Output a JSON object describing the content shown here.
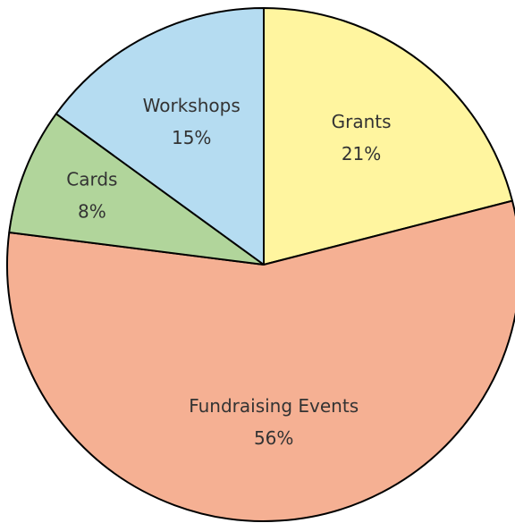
{
  "chart_data": {
    "type": "pie",
    "categories": [
      "Grants",
      "Fundraising Events",
      "Cards",
      "Workshops"
    ],
    "values": [
      21,
      56,
      8,
      15
    ],
    "value_labels": [
      "21%",
      "56%",
      "8%",
      "15%"
    ],
    "colors": [
      "#fff59f",
      "#f5b093",
      "#b1d59b",
      "#b5dcf1"
    ]
  }
}
